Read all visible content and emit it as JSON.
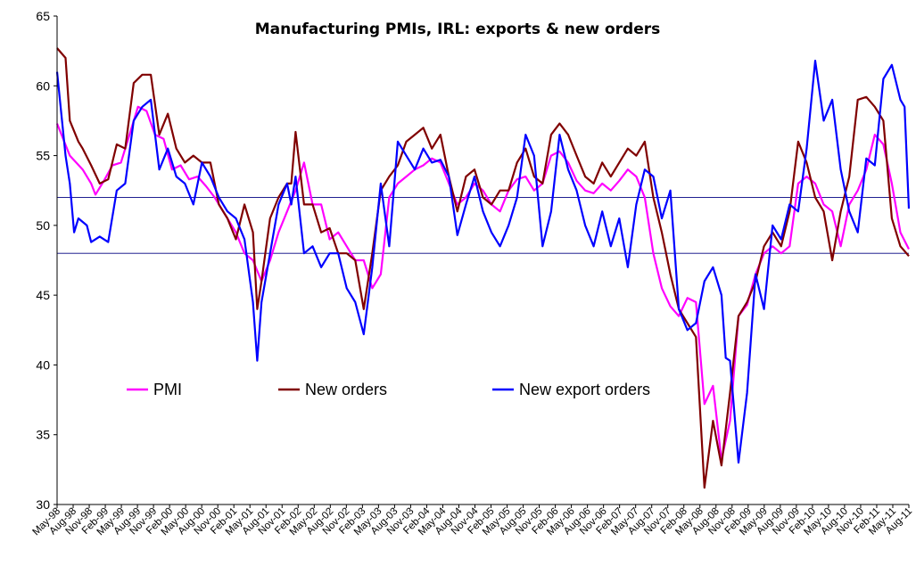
{
  "chart_data": {
    "type": "line",
    "title": "Manufacturing PMIs, IRL: exports & new orders",
    "xlabel": "",
    "ylabel": "",
    "ylim": [
      30,
      65
    ],
    "y_ticks": [
      30,
      35,
      40,
      45,
      50,
      55,
      60,
      65
    ],
    "x_tick_labels": [
      "May-98",
      "Aug-98",
      "Nov-98",
      "Feb-99",
      "May-99",
      "Aug-99",
      "Nov-99",
      "Feb-00",
      "May-00",
      "Aug-00",
      "Nov-00",
      "Feb-01",
      "May-01",
      "Aug-01",
      "Nov-01",
      "Feb-02",
      "May-02",
      "Aug-02",
      "Nov-02",
      "Feb-03",
      "May-03",
      "Aug-03",
      "Nov-03",
      "Feb-04",
      "May-04",
      "Aug-04",
      "Nov-04",
      "Feb-05",
      "May-05",
      "Aug-05",
      "Nov-05",
      "Feb-06",
      "May-06",
      "Aug-06",
      "Nov-06",
      "Feb-07",
      "May-07",
      "Aug-07",
      "Nov-07",
      "Feb-08",
      "May-08",
      "Aug-08",
      "Nov-08",
      "Feb-09",
      "May-09",
      "Aug-09",
      "Nov-09",
      "Feb-10",
      "May-10",
      "Aug-10",
      "Nov-10",
      "Feb-11",
      "May-11",
      "Aug-11"
    ],
    "n_points": 161,
    "reference_lines": [
      52,
      48
    ],
    "legend_position": "lower-middle",
    "series": [
      {
        "name": "PMI",
        "color": "#ff00ff",
        "anchors": [
          [
            0,
            57.3
          ],
          [
            3,
            55
          ],
          [
            6,
            54
          ],
          [
            8,
            53
          ],
          [
            9,
            52.2
          ],
          [
            11,
            53.2
          ],
          [
            13,
            54.3
          ],
          [
            15,
            54.5
          ],
          [
            17,
            56.5
          ],
          [
            19,
            58.5
          ],
          [
            21,
            58.2
          ],
          [
            23,
            56.5
          ],
          [
            25,
            56.2
          ],
          [
            27,
            54
          ],
          [
            29,
            54.3
          ],
          [
            31,
            53.3
          ],
          [
            33,
            53.5
          ],
          [
            35,
            52.8
          ],
          [
            37,
            52
          ],
          [
            40,
            50.5
          ],
          [
            42,
            49.5
          ],
          [
            44,
            48
          ],
          [
            46,
            47.5
          ],
          [
            48,
            46
          ],
          [
            50,
            47.5
          ],
          [
            52,
            49.5
          ],
          [
            54,
            51
          ],
          [
            56,
            52.5
          ],
          [
            58,
            54.5
          ],
          [
            60,
            51.5
          ],
          [
            62,
            51.5
          ],
          [
            64,
            49
          ],
          [
            66,
            49.5
          ],
          [
            68,
            48.5
          ],
          [
            70,
            47.5
          ],
          [
            72,
            47.5
          ],
          [
            74,
            45.5
          ],
          [
            76,
            46.5
          ],
          [
            78,
            52
          ],
          [
            80,
            53
          ],
          [
            82,
            53.5
          ],
          [
            84,
            54
          ],
          [
            86,
            54.3
          ],
          [
            88,
            54.8
          ],
          [
            90,
            54.5
          ],
          [
            92,
            53
          ],
          [
            94,
            51.5
          ],
          [
            96,
            52
          ],
          [
            98,
            53
          ],
          [
            100,
            52.5
          ],
          [
            102,
            51.5
          ],
          [
            104,
            51
          ],
          [
            106,
            52.5
          ],
          [
            108,
            53.3
          ],
          [
            110,
            53.5
          ],
          [
            112,
            52.5
          ],
          [
            114,
            53
          ],
          [
            116,
            55
          ],
          [
            118,
            55.3
          ],
          [
            120,
            54.5
          ],
          [
            122,
            53.2
          ],
          [
            124,
            52.5
          ],
          [
            126,
            52.3
          ],
          [
            128,
            53
          ],
          [
            130,
            52.5
          ],
          [
            132,
            53.2
          ],
          [
            134,
            54
          ],
          [
            136,
            53.5
          ],
          [
            138,
            52
          ],
          [
            140,
            48
          ],
          [
            142,
            45.5
          ],
          [
            144,
            44.2
          ],
          [
            146,
            43.5
          ],
          [
            148,
            44.8
          ],
          [
            150,
            44.5
          ],
          [
            152,
            37.2
          ],
          [
            154,
            38.5
          ],
          [
            156,
            33.2
          ],
          [
            158,
            36
          ],
          [
            160,
            43.5
          ],
          [
            162,
            44.3
          ],
          [
            164,
            46.5
          ],
          [
            166,
            48
          ],
          [
            168,
            48.5
          ],
          [
            170,
            48
          ],
          [
            172,
            48.5
          ],
          [
            174,
            53
          ],
          [
            176,
            53.5
          ],
          [
            178,
            53
          ],
          [
            180,
            51.5
          ],
          [
            182,
            51
          ],
          [
            184,
            48.5
          ],
          [
            186,
            51.5
          ],
          [
            188,
            52.5
          ],
          [
            190,
            54
          ],
          [
            192,
            56.5
          ],
          [
            194,
            55.8
          ],
          [
            196,
            53
          ],
          [
            198,
            49.5
          ],
          [
            200,
            48.3
          ]
        ]
      },
      {
        "name": "New orders",
        "color": "#800000",
        "anchors": [
          [
            0,
            62.7
          ],
          [
            2,
            62
          ],
          [
            3,
            57.5
          ],
          [
            5,
            56
          ],
          [
            6,
            55.5
          ],
          [
            8,
            54.3
          ],
          [
            10,
            53
          ],
          [
            12,
            53.3
          ],
          [
            14,
            55.8
          ],
          [
            16,
            55.5
          ],
          [
            18,
            60.2
          ],
          [
            20,
            60.8
          ],
          [
            22,
            60.8
          ],
          [
            24,
            56.5
          ],
          [
            26,
            58
          ],
          [
            28,
            55.5
          ],
          [
            30,
            54.5
          ],
          [
            32,
            55
          ],
          [
            34,
            54.5
          ],
          [
            36,
            54.5
          ],
          [
            38,
            51.5
          ],
          [
            40,
            50.5
          ],
          [
            42,
            49
          ],
          [
            44,
            51.5
          ],
          [
            46,
            49.5
          ],
          [
            47,
            44
          ],
          [
            48,
            46
          ],
          [
            50,
            50.5
          ],
          [
            52,
            52
          ],
          [
            54,
            53
          ],
          [
            55,
            53
          ],
          [
            56,
            56.7
          ],
          [
            58,
            51.5
          ],
          [
            60,
            51.5
          ],
          [
            62,
            49.5
          ],
          [
            64,
            49.8
          ],
          [
            66,
            48
          ],
          [
            68,
            48
          ],
          [
            70,
            47.5
          ],
          [
            72,
            44
          ],
          [
            74,
            48
          ],
          [
            76,
            52.5
          ],
          [
            78,
            53.5
          ],
          [
            80,
            54.3
          ],
          [
            82,
            56
          ],
          [
            84,
            56.5
          ],
          [
            86,
            57
          ],
          [
            88,
            55.5
          ],
          [
            90,
            56.5
          ],
          [
            92,
            53.5
          ],
          [
            94,
            51
          ],
          [
            96,
            53.5
          ],
          [
            98,
            54
          ],
          [
            100,
            52
          ],
          [
            102,
            51.5
          ],
          [
            104,
            52.5
          ],
          [
            106,
            52.5
          ],
          [
            108,
            54.5
          ],
          [
            110,
            55.5
          ],
          [
            112,
            53.5
          ],
          [
            114,
            53
          ],
          [
            116,
            56.5
          ],
          [
            118,
            57.3
          ],
          [
            120,
            56.5
          ],
          [
            122,
            55
          ],
          [
            124,
            53.5
          ],
          [
            126,
            53
          ],
          [
            128,
            54.5
          ],
          [
            130,
            53.5
          ],
          [
            132,
            54.5
          ],
          [
            134,
            55.5
          ],
          [
            136,
            55
          ],
          [
            138,
            56
          ],
          [
            140,
            52
          ],
          [
            142,
            49.5
          ],
          [
            144,
            46.5
          ],
          [
            146,
            44
          ],
          [
            148,
            43
          ],
          [
            150,
            42
          ],
          [
            152,
            31.2
          ],
          [
            154,
            36
          ],
          [
            156,
            32.8
          ],
          [
            158,
            38
          ],
          [
            160,
            43.5
          ],
          [
            162,
            44.5
          ],
          [
            164,
            46
          ],
          [
            166,
            48.5
          ],
          [
            168,
            49.5
          ],
          [
            170,
            48.5
          ],
          [
            172,
            51
          ],
          [
            174,
            56
          ],
          [
            176,
            54.5
          ],
          [
            178,
            52
          ],
          [
            180,
            51
          ],
          [
            182,
            47.5
          ],
          [
            184,
            51
          ],
          [
            186,
            53.5
          ],
          [
            188,
            59
          ],
          [
            190,
            59.2
          ],
          [
            192,
            58.5
          ],
          [
            194,
            57.5
          ],
          [
            196,
            50.5
          ],
          [
            198,
            48.5
          ],
          [
            200,
            47.8
          ]
        ]
      },
      {
        "name": "New export orders",
        "color": "#0000ff",
        "anchors": [
          [
            0,
            61
          ],
          [
            2,
            55
          ],
          [
            3,
            53
          ],
          [
            4,
            49.5
          ],
          [
            5,
            50.5
          ],
          [
            7,
            50
          ],
          [
            8,
            48.8
          ],
          [
            10,
            49.2
          ],
          [
            12,
            48.8
          ],
          [
            14,
            52.5
          ],
          [
            16,
            53
          ],
          [
            18,
            57.5
          ],
          [
            20,
            58.5
          ],
          [
            22,
            59
          ],
          [
            24,
            54
          ],
          [
            26,
            55.5
          ],
          [
            28,
            53.5
          ],
          [
            30,
            53
          ],
          [
            32,
            51.5
          ],
          [
            34,
            54.5
          ],
          [
            36,
            53.5
          ],
          [
            38,
            52
          ],
          [
            40,
            51
          ],
          [
            42,
            50.5
          ],
          [
            44,
            49
          ],
          [
            46,
            44.5
          ],
          [
            47,
            40.3
          ],
          [
            48,
            44.5
          ],
          [
            50,
            48
          ],
          [
            52,
            51.5
          ],
          [
            54,
            53
          ],
          [
            55,
            51.5
          ],
          [
            56,
            53.5
          ],
          [
            58,
            48
          ],
          [
            60,
            48.5
          ],
          [
            62,
            47
          ],
          [
            64,
            48
          ],
          [
            66,
            48
          ],
          [
            68,
            45.5
          ],
          [
            70,
            44.5
          ],
          [
            72,
            42.2
          ],
          [
            74,
            47
          ],
          [
            76,
            53
          ],
          [
            78,
            48.5
          ],
          [
            80,
            56
          ],
          [
            82,
            55
          ],
          [
            84,
            54
          ],
          [
            86,
            55.5
          ],
          [
            88,
            54.5
          ],
          [
            90,
            54.7
          ],
          [
            92,
            53.5
          ],
          [
            94,
            49.3
          ],
          [
            96,
            51.5
          ],
          [
            98,
            53.5
          ],
          [
            100,
            51
          ],
          [
            102,
            49.5
          ],
          [
            104,
            48.5
          ],
          [
            106,
            50
          ],
          [
            108,
            52
          ],
          [
            110,
            56.5
          ],
          [
            112,
            55
          ],
          [
            114,
            48.5
          ],
          [
            116,
            51
          ],
          [
            118,
            56.5
          ],
          [
            120,
            54
          ],
          [
            122,
            52.5
          ],
          [
            124,
            50
          ],
          [
            126,
            48.5
          ],
          [
            128,
            51
          ],
          [
            130,
            48.5
          ],
          [
            132,
            50.5
          ],
          [
            134,
            47
          ],
          [
            136,
            51.5
          ],
          [
            138,
            54
          ],
          [
            140,
            53.5
          ],
          [
            142,
            50.5
          ],
          [
            144,
            52.5
          ],
          [
            146,
            44
          ],
          [
            148,
            42.5
          ],
          [
            150,
            43
          ],
          [
            152,
            46
          ],
          [
            154,
            47
          ],
          [
            156,
            45
          ],
          [
            157,
            40.5
          ],
          [
            158,
            40.3
          ],
          [
            160,
            33
          ],
          [
            162,
            38
          ],
          [
            164,
            46.5
          ],
          [
            166,
            44
          ],
          [
            168,
            50
          ],
          [
            170,
            49
          ],
          [
            172,
            51.5
          ],
          [
            174,
            51
          ],
          [
            176,
            55.5
          ],
          [
            178,
            61.8
          ],
          [
            180,
            57.5
          ],
          [
            182,
            59
          ],
          [
            184,
            54
          ],
          [
            186,
            51
          ],
          [
            188,
            49.5
          ],
          [
            190,
            54.8
          ],
          [
            192,
            54.3
          ],
          [
            194,
            60.5
          ],
          [
            196,
            61.5
          ],
          [
            198,
            59
          ],
          [
            199,
            58.5
          ],
          [
            200,
            51.2
          ]
        ]
      }
    ]
  }
}
